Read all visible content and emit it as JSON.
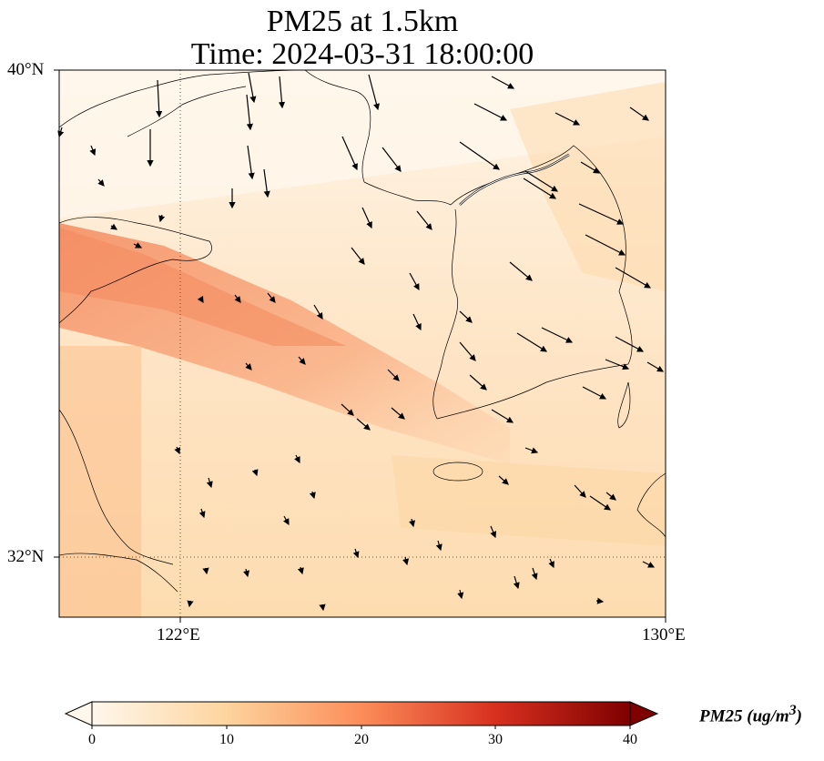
{
  "title": {
    "line1": "PM25 at 1.5km",
    "line2": "Time: 2024-03-31 18:00:00"
  },
  "map": {
    "extent": {
      "lon": [
        119.0,
        130.0
      ],
      "lat": [
        31.0,
        40.0
      ]
    },
    "lat_ticks": [
      "40°N",
      "32°N"
    ],
    "lon_ticks": [
      "122°E",
      "130°E"
    ],
    "gridlines": {
      "lon": 122,
      "lat": 32,
      "style": "dotted"
    },
    "field": "PM25",
    "wind_vectors": "shown as black arrows"
  },
  "colorbar": {
    "label": "PM25 (ug/m",
    "label_sup": "3",
    "label_close": ")",
    "ticks": [
      "0",
      "10",
      "20",
      "30",
      "40"
    ],
    "range": [
      0,
      40
    ],
    "colormap": "OrRd",
    "extend": "max"
  },
  "colors": {
    "low": "#fff7ec",
    "mid": "#fdd49e",
    "high": "#ef6548",
    "max": "#7f0000"
  }
}
